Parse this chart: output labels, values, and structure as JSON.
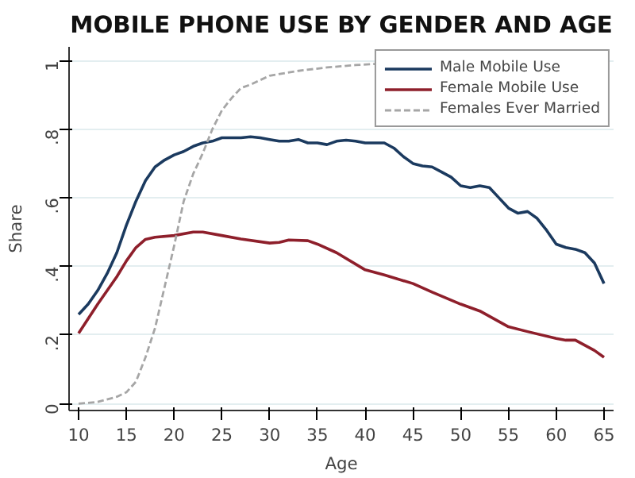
{
  "chart_data": {
    "type": "line",
    "title": "MOBILE PHONE USE BY GENDER AND AGE",
    "xlabel": "Age",
    "ylabel": "Share",
    "xlim": [
      9,
      66
    ],
    "xticks": [
      10,
      15,
      20,
      25,
      30,
      35,
      40,
      45,
      50,
      55,
      60,
      65
    ],
    "ylim": [
      -0.02,
      1.04
    ],
    "yticks": [
      {
        "value": 0,
        "label": "0"
      },
      {
        "value": 0.2,
        "label": ".2"
      },
      {
        "value": 0.4,
        "label": ".4"
      },
      {
        "value": 0.6,
        "label": ".6"
      },
      {
        "value": 0.8,
        "label": ".8"
      },
      {
        "value": 1,
        "label": "1"
      }
    ],
    "grid": "y",
    "legend": "top right",
    "marker": "none",
    "series": [
      {
        "name": "Male Mobile Use",
        "color": "#1b3a5f",
        "line_style": "solid",
        "x": [
          10,
          11,
          12,
          13,
          14,
          15,
          16,
          17,
          18,
          19,
          20,
          21,
          22,
          23,
          24,
          25,
          26,
          27,
          28,
          29,
          30,
          31,
          32,
          33,
          34,
          35,
          36,
          37,
          38,
          39,
          40,
          41,
          42,
          43,
          44,
          45,
          46,
          47,
          48,
          49,
          50,
          51,
          52,
          53,
          54,
          55,
          56,
          57,
          58,
          59,
          60,
          61,
          62,
          63,
          64,
          65
        ],
        "values": [
          0.26,
          0.29,
          0.33,
          0.38,
          0.44,
          0.52,
          0.59,
          0.65,
          0.69,
          0.71,
          0.725,
          0.735,
          0.75,
          0.76,
          0.765,
          0.775,
          0.775,
          0.775,
          0.778,
          0.775,
          0.77,
          0.765,
          0.765,
          0.77,
          0.76,
          0.76,
          0.755,
          0.765,
          0.768,
          0.765,
          0.76,
          0.76,
          0.76,
          0.745,
          0.72,
          0.7,
          0.693,
          0.69,
          0.675,
          0.66,
          0.635,
          0.63,
          0.635,
          0.63,
          0.6,
          0.57,
          0.555,
          0.56,
          0.54,
          0.505,
          0.465,
          0.455,
          0.45,
          0.44,
          0.41,
          0.35
        ]
      },
      {
        "name": "Female Mobile Use",
        "color": "#8e1f2b",
        "line_style": "solid",
        "x": [
          10,
          12,
          14,
          15,
          16,
          17,
          18,
          20,
          22,
          23,
          25,
          27,
          30,
          31,
          32,
          34,
          35,
          37,
          40,
          42,
          45,
          47,
          50,
          52,
          55,
          57,
          60,
          61,
          62,
          63,
          64,
          65
        ],
        "values": [
          0.205,
          0.29,
          0.37,
          0.416,
          0.455,
          0.479,
          0.485,
          0.49,
          0.5,
          0.5,
          0.49,
          0.48,
          0.468,
          0.47,
          0.477,
          0.475,
          0.465,
          0.44,
          0.39,
          0.375,
          0.35,
          0.325,
          0.29,
          0.27,
          0.224,
          0.21,
          0.19,
          0.185,
          0.185,
          0.17,
          0.155,
          0.135
        ]
      },
      {
        "name": "Females Ever Married",
        "color": "#a6a6a6",
        "line_style": "dashed",
        "x": [
          10,
          12,
          14,
          15,
          16,
          17,
          18,
          19,
          20,
          21,
          22,
          23,
          24,
          25,
          26,
          27,
          28,
          30,
          33,
          36,
          39,
          41
        ],
        "values": [
          0.0,
          0.005,
          0.02,
          0.033,
          0.064,
          0.135,
          0.22,
          0.34,
          0.46,
          0.59,
          0.67,
          0.73,
          0.8,
          0.855,
          0.89,
          0.92,
          0.93,
          0.956,
          0.97,
          0.98,
          0.987,
          0.99
        ]
      }
    ]
  }
}
